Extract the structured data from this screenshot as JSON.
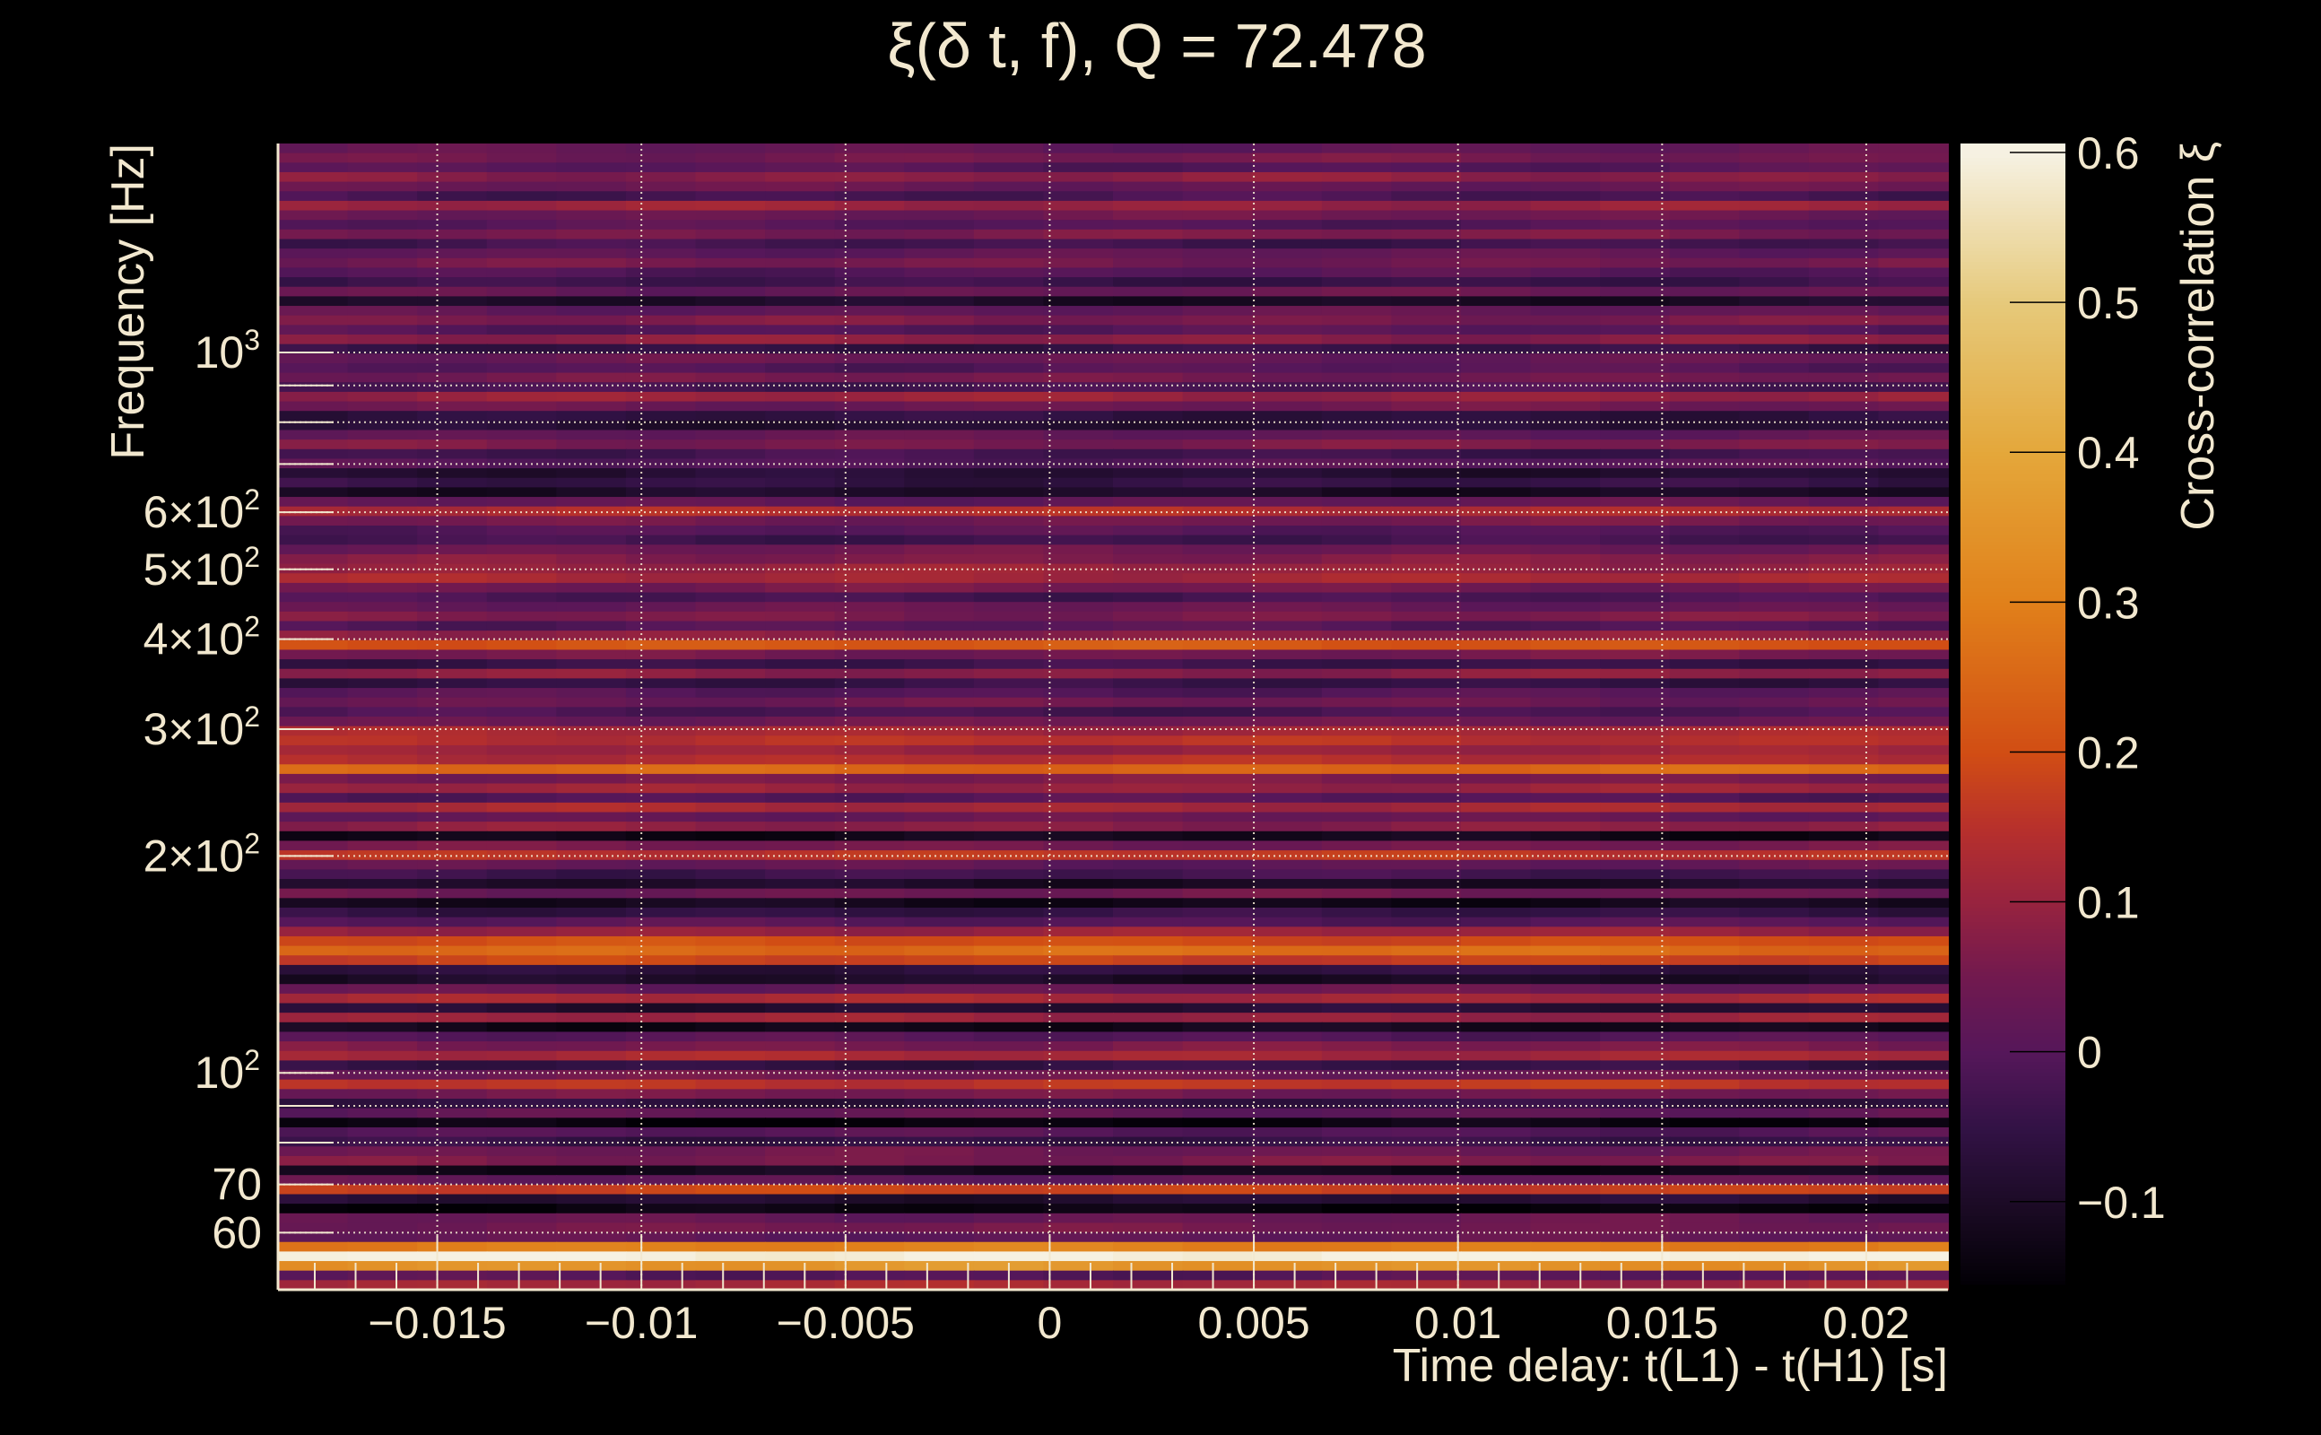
{
  "chart_data": {
    "type": "heatmap",
    "title": "ξ(δ t, f), Q = 72.478",
    "xlabel": "Time delay: t(L1) - t(H1) [s]",
    "ylabel": "Frequency [Hz]",
    "colorbar_label": "Cross-correlation ξ",
    "xlim": [
      -0.0189,
      0.022
    ],
    "ylim": [
      50,
      1950
    ],
    "yscale": "log",
    "clim": [
      -0.154,
      0.606
    ],
    "grid": true,
    "x_ticks": [
      {
        "value": -0.015,
        "label": "−0.015"
      },
      {
        "value": -0.01,
        "label": "−0.01"
      },
      {
        "value": -0.005,
        "label": "−0.005"
      },
      {
        "value": 0,
        "label": "0"
      },
      {
        "value": 0.005,
        "label": "0.005"
      },
      {
        "value": 0.01,
        "label": "0.01"
      },
      {
        "value": 0.015,
        "label": "0.015"
      },
      {
        "value": 0.02,
        "label": "0.02"
      }
    ],
    "y_ticks": [
      {
        "value": 1000,
        "label": "10",
        "exp": "3"
      },
      {
        "value": 600,
        "label": "6×10",
        "exp": "2"
      },
      {
        "value": 500,
        "label": "5×10",
        "exp": "2"
      },
      {
        "value": 400,
        "label": "4×10",
        "exp": "2"
      },
      {
        "value": 300,
        "label": "3×10",
        "exp": "2"
      },
      {
        "value": 200,
        "label": "2×10",
        "exp": "2"
      },
      {
        "value": 100,
        "label": "10",
        "exp": "2"
      },
      {
        "value": 70,
        "label": "70",
        "exp": ""
      },
      {
        "value": 60,
        "label": "60",
        "exp": ""
      }
    ],
    "y_minor_grid": [
      900,
      800,
      700,
      90,
      80
    ],
    "colorbar_ticks": [
      {
        "value": 0.6,
        "label": "0.6"
      },
      {
        "value": 0.5,
        "label": "0.5"
      },
      {
        "value": 0.4,
        "label": "0.4"
      },
      {
        "value": 0.3,
        "label": "0.3"
      },
      {
        "value": 0.2,
        "label": "0.2"
      },
      {
        "value": 0.1,
        "label": "0.1"
      },
      {
        "value": 0,
        "label": "0"
      },
      {
        "value": -0.1,
        "label": "−0.1"
      }
    ],
    "colormap": [
      [
        -0.155,
        "#020005"
      ],
      [
        -0.1,
        "#1c0b26"
      ],
      [
        -0.05,
        "#321245"
      ],
      [
        0,
        "#55175a"
      ],
      [
        0.05,
        "#71194f"
      ],
      [
        0.1,
        "#97233f"
      ],
      [
        0.15,
        "#b7302c"
      ],
      [
        0.2,
        "#d14d14"
      ],
      [
        0.3,
        "#e1801a"
      ],
      [
        0.4,
        "#e4a73a"
      ],
      [
        0.5,
        "#e6c97a"
      ],
      [
        0.6,
        "#f6f1e2"
      ]
    ],
    "row_count_note_free": true,
    "rows_log_freq_top_to_bottom": [
      0.02,
      0.05,
      0.0,
      0.08,
      0.03,
      -0.02,
      0.1,
      0.04,
      0.0,
      0.06,
      -0.03,
      0.02,
      0.05,
      0.0,
      -0.04,
      0.03,
      -0.1,
      0.02,
      0.06,
      0.0,
      0.08,
      -0.05,
      0.03,
      0.0,
      0.05,
      -0.02,
      0.1,
      0.04,
      -0.06,
      -0.08,
      0.02,
      0.06,
      -0.03,
      0.0,
      -0.08,
      -0.05,
      -0.1,
      0.02,
      0.14,
      0.05,
      0.0,
      -0.03,
      0.04,
      0.07,
      0.1,
      0.12,
      0.05,
      -0.02,
      0.03,
      0.06,
      0.0,
      0.08,
      0.22,
      0.05,
      -0.04,
      0.08,
      -0.05,
      0.0,
      0.04,
      -0.02,
      0.04,
      0.12,
      0.15,
      0.1,
      0.14,
      0.25,
      0.06,
      0.1,
      0.0,
      0.12,
      0.03,
      0.08,
      -0.12,
      0.05,
      0.16,
      0.02,
      -0.03,
      -0.1,
      0.04,
      -0.12,
      -0.05,
      0.0,
      0.1,
      0.2,
      0.26,
      0.18,
      -0.06,
      -0.1,
      0.03,
      0.12,
      -0.08,
      0.1,
      -0.12,
      0.0,
      0.06,
      0.12,
      -0.05,
      0.04,
      0.16,
      0.05,
      -0.06,
      0.02,
      -0.14,
      0.0,
      -0.05,
      0.04,
      0.06,
      -0.12,
      0.02,
      0.18,
      -0.08,
      -0.14,
      0.03,
      0.05,
      0.02,
      0.3,
      0.6,
      0.35,
      0.0,
      0.12
    ]
  }
}
